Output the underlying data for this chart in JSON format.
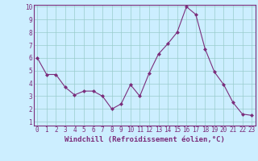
{
  "x": [
    0,
    1,
    2,
    3,
    4,
    5,
    6,
    7,
    8,
    9,
    10,
    11,
    12,
    13,
    14,
    15,
    16,
    17,
    18,
    19,
    20,
    21,
    22,
    23
  ],
  "y": [
    6.0,
    4.7,
    4.7,
    3.7,
    3.1,
    3.4,
    3.4,
    3.0,
    2.0,
    2.4,
    3.9,
    3.0,
    4.8,
    6.3,
    7.1,
    8.0,
    10.0,
    9.4,
    6.7,
    4.9,
    3.9,
    2.5,
    1.6,
    1.5
  ],
  "line_color": "#7b2d7b",
  "marker_color": "#7b2d7b",
  "bg_color": "#cceeff",
  "grid_color": "#99cccc",
  "axis_label_color": "#7b2d7b",
  "xlabel": "Windchill (Refroidissement éolien,°C)",
  "ylim_min": 1,
  "ylim_max": 10,
  "xlim_min": 0,
  "xlim_max": 23,
  "yticks": [
    1,
    2,
    3,
    4,
    5,
    6,
    7,
    8,
    9,
    10
  ],
  "xticks": [
    0,
    1,
    2,
    3,
    4,
    5,
    6,
    7,
    8,
    9,
    10,
    11,
    12,
    13,
    14,
    15,
    16,
    17,
    18,
    19,
    20,
    21,
    22,
    23
  ],
  "tick_label_color": "#7b2d7b",
  "spine_color": "#7b2d7b",
  "tick_fontsize": 5.5,
  "xlabel_fontsize": 6.5,
  "linewidth": 0.8,
  "markersize": 2.0
}
